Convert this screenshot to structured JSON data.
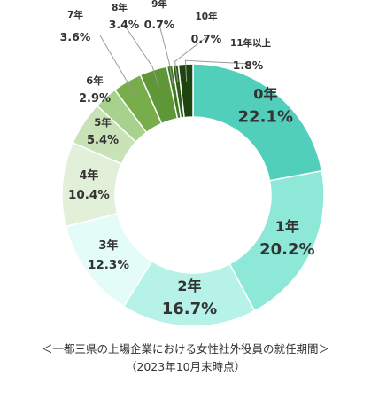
{
  "chart_data": {
    "type": "pie",
    "donut": true,
    "categories": [
      "0年",
      "1年",
      "2年",
      "3年",
      "4年",
      "5年",
      "6年",
      "7年",
      "8年",
      "9年",
      "10年",
      "11年以上"
    ],
    "values": [
      22.1,
      20.2,
      16.7,
      12.3,
      10.4,
      5.4,
      2.9,
      3.6,
      3.4,
      0.7,
      0.7,
      1.8
    ],
    "value_labels": [
      "22.1%",
      "20.2%",
      "16.7%",
      "12.3%",
      "10.4%",
      "5.4%",
      "2.9%",
      "3.6%",
      "3.4%",
      "0.7%",
      "0.7%",
      "1.8%"
    ],
    "colors": [
      "#52cfbb",
      "#8ee8d7",
      "#b7f2e8",
      "#e3fcf8",
      "#e2efd9",
      "#c9e2b8",
      "#a7d18c",
      "#77ad4a",
      "#5f9637",
      "#3f7a23",
      "#2c5e17",
      "#1e4510"
    ],
    "title": "＜一都三県の上場企業における女性社外役員の就任期間＞",
    "subtitle": "（2023年10月末時点）",
    "legend": "none"
  }
}
